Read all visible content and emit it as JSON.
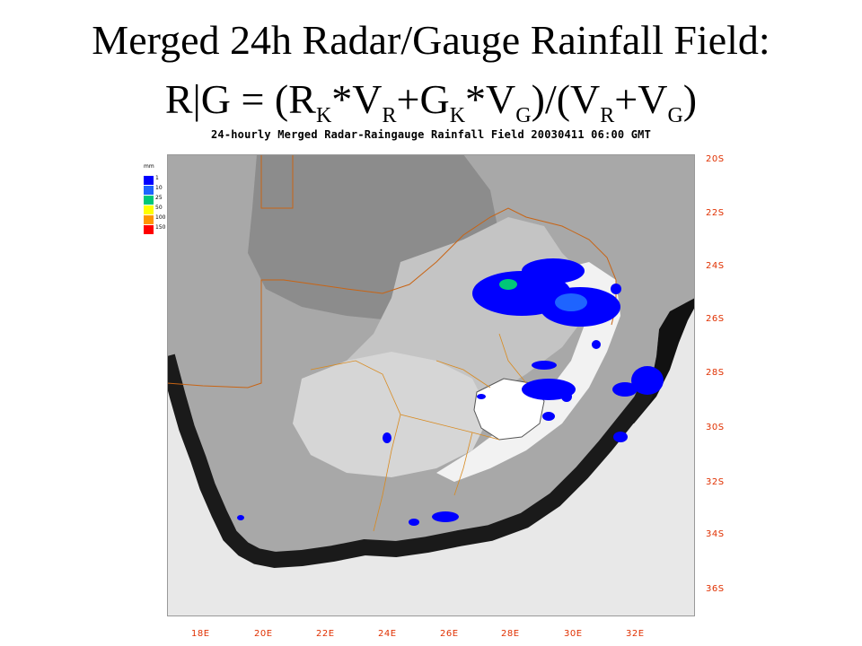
{
  "slide": {
    "title_line1": "Merged 24h Radar/Gauge Rainfall Field:",
    "formula": {
      "prefix": "R|G = (R",
      "s1": "K",
      "t1": "*V",
      "s2": "R",
      "t2": "+G",
      "s3": "K",
      "t3": "*V",
      "s4": "G",
      "t4": ")/(V",
      "s5": "R",
      "t5": "+V",
      "s6": "G",
      "t6": ")"
    }
  },
  "map": {
    "header": "24-hourly Merged Radar-Raingauge Rainfall Field 20030411 06:00 GMT",
    "latitude_labels": [
      "20S",
      "22S",
      "24S",
      "26S",
      "28S",
      "30S",
      "32S",
      "34S",
      "36S"
    ],
    "longitude_labels": [
      "18E",
      "20E",
      "22E",
      "24E",
      "26E",
      "28E",
      "30E",
      "32E"
    ],
    "grid_label_color": "#e03000",
    "border_color": "#c86414",
    "province_color": "#d88a20"
  },
  "legend": {
    "unit": "mm",
    "items": [
      {
        "label": "1",
        "color": "#0000ff"
      },
      {
        "label": "10",
        "color": "#1e64ff"
      },
      {
        "label": "25",
        "color": "#00c878"
      },
      {
        "label": "50",
        "color": "#ffff00"
      },
      {
        "label": "100",
        "color": "#ff9600"
      },
      {
        "label": "150",
        "color": "#ff0000"
      }
    ]
  }
}
